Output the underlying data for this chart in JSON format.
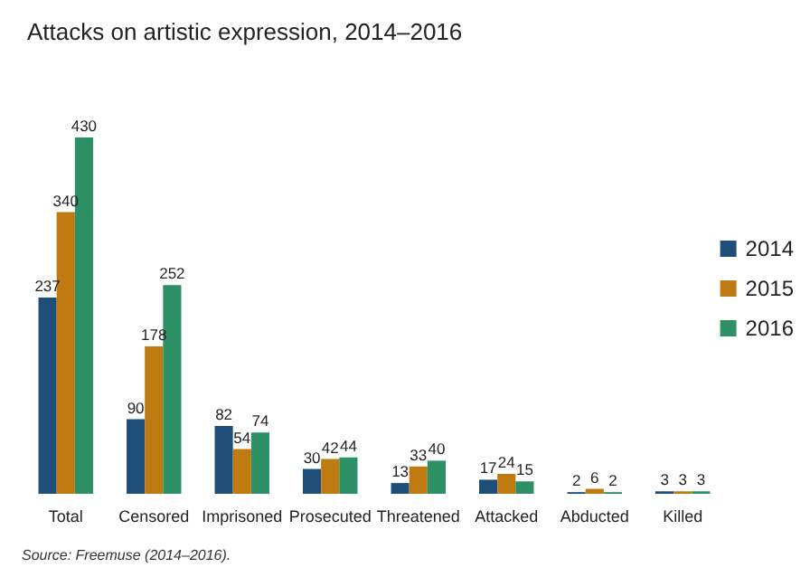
{
  "chart_data": {
    "type": "bar",
    "title": "Attacks on artistic expression, 2014–2016",
    "categories": [
      "Total",
      "Censored",
      "Imprisoned",
      "Prosecuted",
      "Threatened",
      "Attacked",
      "Abducted",
      "Killed"
    ],
    "series": [
      {
        "name": "2014",
        "color": "#1f4e79",
        "values": [
          237,
          90,
          82,
          30,
          13,
          17,
          2,
          3
        ]
      },
      {
        "name": "2015",
        "color": "#c07a12",
        "values": [
          340,
          178,
          54,
          42,
          33,
          24,
          6,
          3
        ]
      },
      {
        "name": "2016",
        "color": "#2e9165",
        "values": [
          430,
          252,
          74,
          44,
          40,
          15,
          2,
          3
        ]
      }
    ],
    "data_labels": true,
    "legend": "right",
    "tick_labels": "x",
    "annotations": [
      "Source: Freemuse (2014–2016)."
    ]
  }
}
